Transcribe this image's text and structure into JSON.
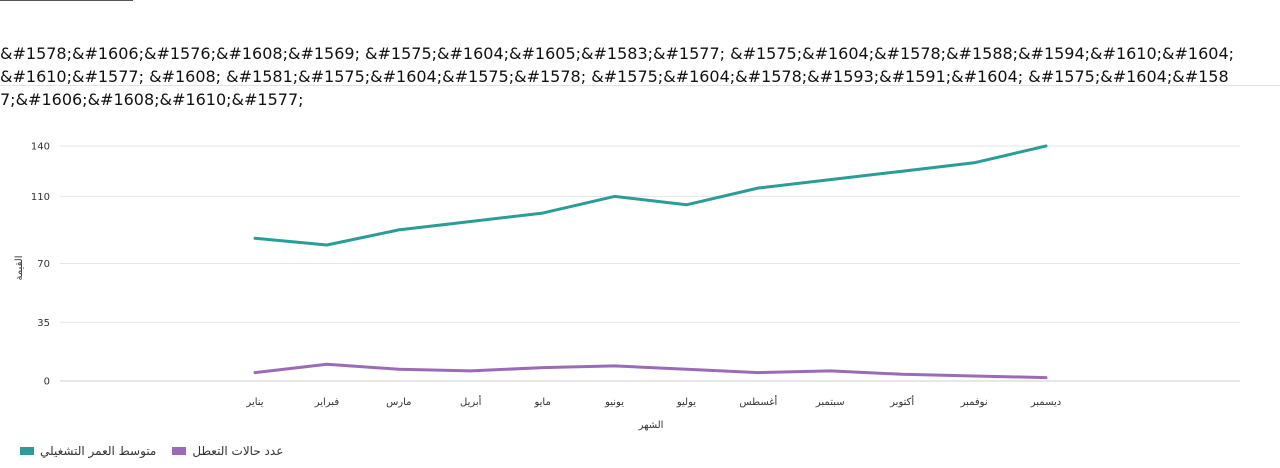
{
  "header": {
    "title": "&#1578;&#1606;&#1576;&#1608;&#1569; &#1575;&#1604;&#1605;&#1583;&#1577; &#1575;&#1604;&#1578;&#1588;&#1594;&#1610;&#1604;&#1610;&#1577; &#1608; &#1581;&#1575;&#1604;&#1575;&#1578; &#1575;&#1604;&#1578;&#1593;&#1591;&#1604; &#1575;&#1604;&#1587;&#1606;&#1608;&#1610;&#1577;"
  },
  "chart_data": {
    "type": "line",
    "categories": [
      "يناير",
      "فبراير",
      "مارس",
      "أبريل",
      "مايو",
      "يونيو",
      "يوليو",
      "أغسطس",
      "سبتمبر",
      "أكتوبر",
      "نوفمبر",
      "ديسمبر"
    ],
    "series": [
      {
        "name": "متوسط العمر التشغيلي",
        "color": "#2a9d98",
        "values": [
          85,
          81,
          90,
          95,
          100,
          110,
          105,
          115,
          120,
          125,
          130,
          140
        ]
      },
      {
        "name": "عدد حالات التعطل",
        "color": "#9b6bb8",
        "values": [
          5,
          10,
          7,
          6,
          8,
          9,
          7,
          5,
          6,
          4,
          3,
          2
        ]
      }
    ],
    "xlabel": "الشهر",
    "ylabel": "القيمة",
    "yticks": [
      0,
      35,
      70,
      110,
      140
    ],
    "ylim": [
      0,
      140
    ],
    "grid": true,
    "legend_position": "bottom-left"
  }
}
